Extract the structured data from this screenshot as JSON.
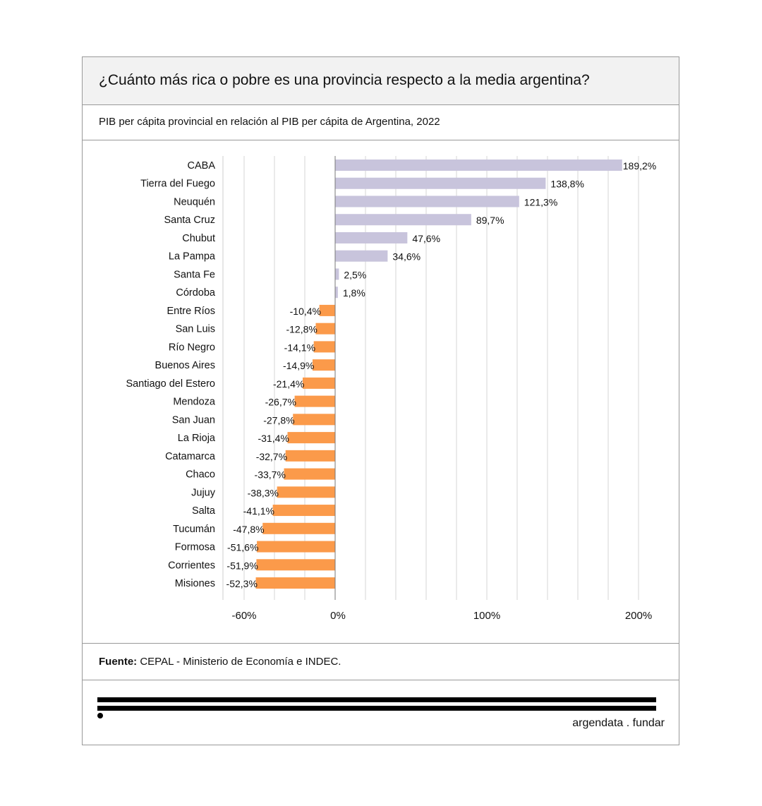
{
  "title": "¿Cuánto más rica o pobre es una provincia respecto a la media argentina?",
  "subtitle": "PIB per cápita provincial en relación al PIB per cápita de Argentina, 2022",
  "source": {
    "label": "Fuente:",
    "text": "CEPAL - Ministerio de Economía e INDEC."
  },
  "brand": "argendata . fundar",
  "colors": {
    "positive": "#c8c4dc",
    "negative": "#fb9a4a"
  },
  "chart_data": {
    "type": "bar",
    "orientation": "horizontal",
    "categories": [
      "CABA",
      "Tierra del Fuego",
      "Neuquén",
      "Santa Cruz",
      "Chubut",
      "La Pampa",
      "Santa Fe",
      "Córdoba",
      "Entre Ríos",
      "San Luis",
      "Río Negro",
      "Buenos Aires",
      "Santiago del Estero",
      "Mendoza",
      "San Juan",
      "La Rioja",
      "Catamarca",
      "Chaco",
      "Jujuy",
      "Salta",
      "Tucumán",
      "Formosa",
      "Corrientes",
      "Misiones"
    ],
    "values": [
      189.2,
      138.8,
      121.3,
      89.7,
      47.6,
      34.6,
      2.5,
      1.8,
      -10.4,
      -12.8,
      -14.1,
      -14.9,
      -21.4,
      -26.7,
      -27.8,
      -31.4,
      -32.7,
      -33.7,
      -38.3,
      -41.1,
      -47.8,
      -51.6,
      -51.9,
      -52.3
    ],
    "data_labels": [
      "189,2%",
      "138,8%",
      "121,3%",
      "89,7%",
      "47,6%",
      "34,6%",
      "2,5%",
      "1,8%",
      "-10,4%",
      "-12,8%",
      "-14,1%",
      "-14,9%",
      "-21,4%",
      "-26,7%",
      "-27,8%",
      "-31,4%",
      "-32,7%",
      "-33,7%",
      "-38,3%",
      "-41,1%",
      "-47,8%",
      "-51,6%",
      "-51,9%",
      "-52,3%"
    ],
    "xticks": [
      -60,
      0,
      100,
      200
    ],
    "xtick_labels": [
      "-60%",
      "0%",
      "100%",
      "200%"
    ],
    "xlim": [
      -74,
      200
    ],
    "grid": "vertical every 20%",
    "title": "",
    "xlabel": "",
    "ylabel": ""
  }
}
